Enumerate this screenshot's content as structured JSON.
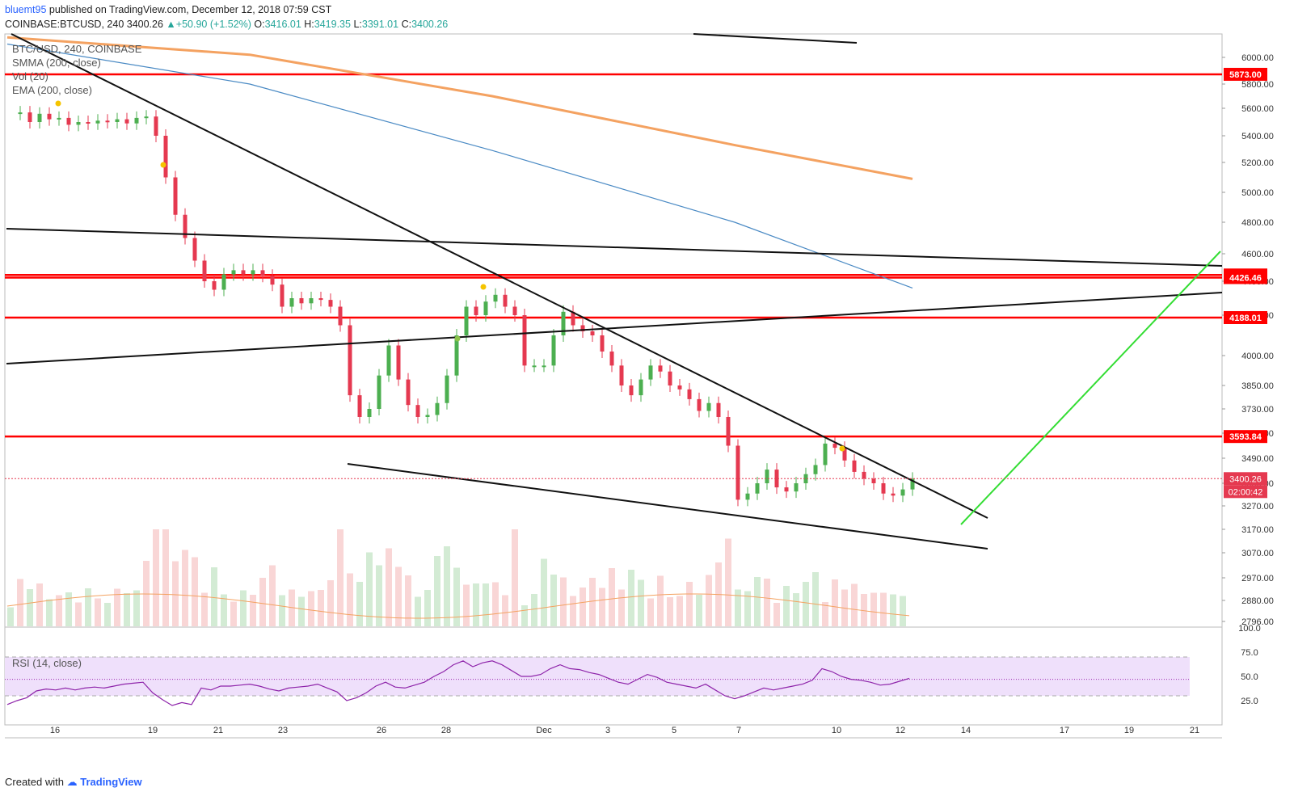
{
  "header": {
    "author": "bluemt95",
    "published_text": "published on TradingView.com, December 12, 2018 07:59 CST",
    "symbol": "COINBASE:BTCUSD, 240",
    "last": "3400.26",
    "change": "+50.90 (+1.52%)",
    "o_label": "O:",
    "o_value": "3416.01",
    "h_label": "H:",
    "h_value": "3419.35",
    "l_label": "L:",
    "l_value": "3391.01",
    "c_label": "C:",
    "c_value": "3400.26"
  },
  "overlay": {
    "symbol": "BTC/USD, 240, COINBASE",
    "smma": "SMMA (200, close)",
    "vol": "Vol (20)",
    "ema": "EMA (200, close)",
    "rsi": "RSI (14, close)"
  },
  "footer": {
    "created_with": "Created with",
    "brand": "TradingView"
  },
  "colors": {
    "up": "#26a69a",
    "candle_up": "#4caf50",
    "candle_down": "#e53950",
    "hline": "#ff0000",
    "smma": "#f4a261",
    "ema": "#4a8ac4",
    "green_line": "#33dd33",
    "rsi_band": "#efe0fb"
  },
  "chart_data": [
    {
      "type": "candlestick",
      "title": "BTC/USD, 240, COINBASE",
      "price_axis_ticks": [
        "6000.00",
        "5800.00",
        "5600.00",
        "5400.00",
        "5200.00",
        "5000.00",
        "4800.00",
        "4600.00",
        "4400.00",
        "4200.00",
        "4000.00",
        "3850.00",
        "3730.00",
        "3610.00",
        "3490.00",
        "3380.00",
        "3270.00",
        "3170.00",
        "3070.00",
        "2970.00",
        "2880.00",
        "2796.00"
      ],
      "date_axis_ticks": [
        "16",
        "19",
        "21",
        "23",
        "26",
        "28",
        "Dec",
        "3",
        "5",
        "7",
        "10",
        "12",
        "14",
        "17",
        "19",
        "21"
      ],
      "horizontal_levels": [
        "5873.00",
        "4445.51",
        "4426.46",
        "4188.01",
        "3593.84"
      ],
      "last_price_label": "3400.26",
      "countdown_label": "02:00:42",
      "close_path": [
        [
          0,
          5560
        ],
        [
          12,
          5570
        ],
        [
          24,
          5500
        ],
        [
          36,
          5560
        ],
        [
          48,
          5520
        ],
        [
          60,
          5530
        ],
        [
          72,
          5480
        ],
        [
          84,
          5500
        ],
        [
          96,
          5490
        ],
        [
          108,
          5510
        ],
        [
          120,
          5500
        ],
        [
          132,
          5520
        ],
        [
          144,
          5490
        ],
        [
          156,
          5530
        ],
        [
          168,
          5540
        ],
        [
          180,
          5400
        ],
        [
          192,
          5100
        ],
        [
          204,
          4850
        ],
        [
          216,
          4700
        ],
        [
          228,
          4550
        ],
        [
          240,
          4400
        ],
        [
          252,
          4350
        ],
        [
          264,
          4450
        ],
        [
          276,
          4480
        ],
        [
          288,
          4450
        ],
        [
          300,
          4480
        ],
        [
          312,
          4440
        ],
        [
          324,
          4380
        ],
        [
          336,
          4250
        ],
        [
          348,
          4300
        ],
        [
          360,
          4270
        ],
        [
          372,
          4300
        ],
        [
          384,
          4290
        ],
        [
          396,
          4250
        ],
        [
          408,
          4150
        ],
        [
          420,
          3800
        ],
        [
          432,
          3690
        ],
        [
          444,
          3730
        ],
        [
          456,
          3900
        ],
        [
          468,
          4050
        ],
        [
          480,
          3880
        ],
        [
          492,
          3750
        ],
        [
          504,
          3690
        ],
        [
          516,
          3700
        ],
        [
          528,
          3760
        ],
        [
          540,
          3900
        ],
        [
          552,
          4100
        ],
        [
          564,
          4250
        ],
        [
          576,
          4200
        ],
        [
          588,
          4280
        ],
        [
          600,
          4320
        ],
        [
          612,
          4250
        ],
        [
          624,
          4200
        ],
        [
          636,
          3950
        ],
        [
          648,
          3950
        ],
        [
          660,
          3950
        ],
        [
          672,
          4100
        ],
        [
          684,
          4220
        ],
        [
          696,
          4150
        ],
        [
          708,
          4120
        ],
        [
          720,
          4100
        ],
        [
          732,
          4020
        ],
        [
          744,
          3950
        ],
        [
          756,
          3850
        ],
        [
          768,
          3800
        ],
        [
          780,
          3880
        ],
        [
          792,
          3950
        ],
        [
          804,
          3920
        ],
        [
          816,
          3850
        ],
        [
          828,
          3830
        ],
        [
          840,
          3780
        ],
        [
          852,
          3720
        ],
        [
          864,
          3760
        ],
        [
          876,
          3690
        ],
        [
          888,
          3550
        ],
        [
          900,
          3300
        ],
        [
          912,
          3330
        ],
        [
          924,
          3380
        ],
        [
          936,
          3440
        ],
        [
          948,
          3360
        ],
        [
          960,
          3340
        ],
        [
          972,
          3380
        ],
        [
          984,
          3420
        ],
        [
          996,
          3460
        ],
        [
          1008,
          3560
        ],
        [
          1020,
          3540
        ],
        [
          1032,
          3480
        ],
        [
          1044,
          3430
        ],
        [
          1056,
          3400
        ],
        [
          1068,
          3380
        ],
        [
          1080,
          3330
        ],
        [
          1092,
          3320
        ],
        [
          1104,
          3350
        ],
        [
          1116,
          3400
        ]
      ],
      "smma": [
        [
          0,
          6150
        ],
        [
          300,
          6020
        ],
        [
          600,
          5700
        ],
        [
          900,
          5330
        ],
        [
          1120,
          5090
        ]
      ],
      "ema": [
        [
          0,
          6100
        ],
        [
          300,
          5800
        ],
        [
          600,
          5290
        ],
        [
          900,
          4800
        ],
        [
          1120,
          4360
        ]
      ]
    },
    {
      "type": "volume",
      "title": "Vol (20)"
    },
    {
      "type": "line",
      "title": "RSI (14, close)",
      "y_ticks": [
        "100.0",
        "75.0",
        "50.0",
        "25.0"
      ],
      "ylim": [
        0,
        100
      ],
      "band": [
        30,
        70
      ],
      "values": [
        [
          0,
          21
        ],
        [
          12,
          25
        ],
        [
          24,
          28
        ],
        [
          36,
          35
        ],
        [
          48,
          37
        ],
        [
          60,
          36
        ],
        [
          72,
          38
        ],
        [
          84,
          36
        ],
        [
          96,
          38
        ],
        [
          108,
          39
        ],
        [
          120,
          38
        ],
        [
          132,
          40
        ],
        [
          144,
          42
        ],
        [
          156,
          43
        ],
        [
          168,
          44
        ],
        [
          180,
          33
        ],
        [
          192,
          26
        ],
        [
          204,
          20
        ],
        [
          216,
          23
        ],
        [
          228,
          21
        ],
        [
          240,
          38
        ],
        [
          252,
          36
        ],
        [
          264,
          40
        ],
        [
          276,
          40
        ],
        [
          288,
          41
        ],
        [
          300,
          42
        ],
        [
          312,
          40
        ],
        [
          324,
          37
        ],
        [
          336,
          35
        ],
        [
          348,
          38
        ],
        [
          360,
          39
        ],
        [
          372,
          40
        ],
        [
          384,
          42
        ],
        [
          396,
          38
        ],
        [
          408,
          34
        ],
        [
          420,
          25
        ],
        [
          432,
          28
        ],
        [
          444,
          33
        ],
        [
          456,
          40
        ],
        [
          468,
          44
        ],
        [
          480,
          39
        ],
        [
          492,
          38
        ],
        [
          504,
          41
        ],
        [
          516,
          44
        ],
        [
          528,
          50
        ],
        [
          540,
          55
        ],
        [
          552,
          62
        ],
        [
          564,
          66
        ],
        [
          576,
          60
        ],
        [
          588,
          64
        ],
        [
          600,
          66
        ],
        [
          612,
          62
        ],
        [
          624,
          56
        ],
        [
          636,
          50
        ],
        [
          648,
          50
        ],
        [
          660,
          52
        ],
        [
          672,
          58
        ],
        [
          684,
          62
        ],
        [
          696,
          58
        ],
        [
          708,
          57
        ],
        [
          720,
          54
        ],
        [
          732,
          52
        ],
        [
          744,
          48
        ],
        [
          756,
          44
        ],
        [
          768,
          42
        ],
        [
          780,
          47
        ],
        [
          792,
          52
        ],
        [
          804,
          49
        ],
        [
          816,
          44
        ],
        [
          828,
          42
        ],
        [
          840,
          40
        ],
        [
          852,
          38
        ],
        [
          864,
          42
        ],
        [
          876,
          36
        ],
        [
          888,
          30
        ],
        [
          900,
          27
        ],
        [
          912,
          30
        ],
        [
          924,
          34
        ],
        [
          936,
          38
        ],
        [
          948,
          36
        ],
        [
          960,
          38
        ],
        [
          972,
          40
        ],
        [
          984,
          42
        ],
        [
          996,
          46
        ],
        [
          1008,
          58
        ],
        [
          1020,
          55
        ],
        [
          1032,
          50
        ],
        [
          1044,
          47
        ],
        [
          1056,
          46
        ],
        [
          1068,
          44
        ],
        [
          1080,
          41
        ],
        [
          1092,
          42
        ],
        [
          1104,
          45
        ],
        [
          1116,
          48
        ]
      ]
    }
  ]
}
